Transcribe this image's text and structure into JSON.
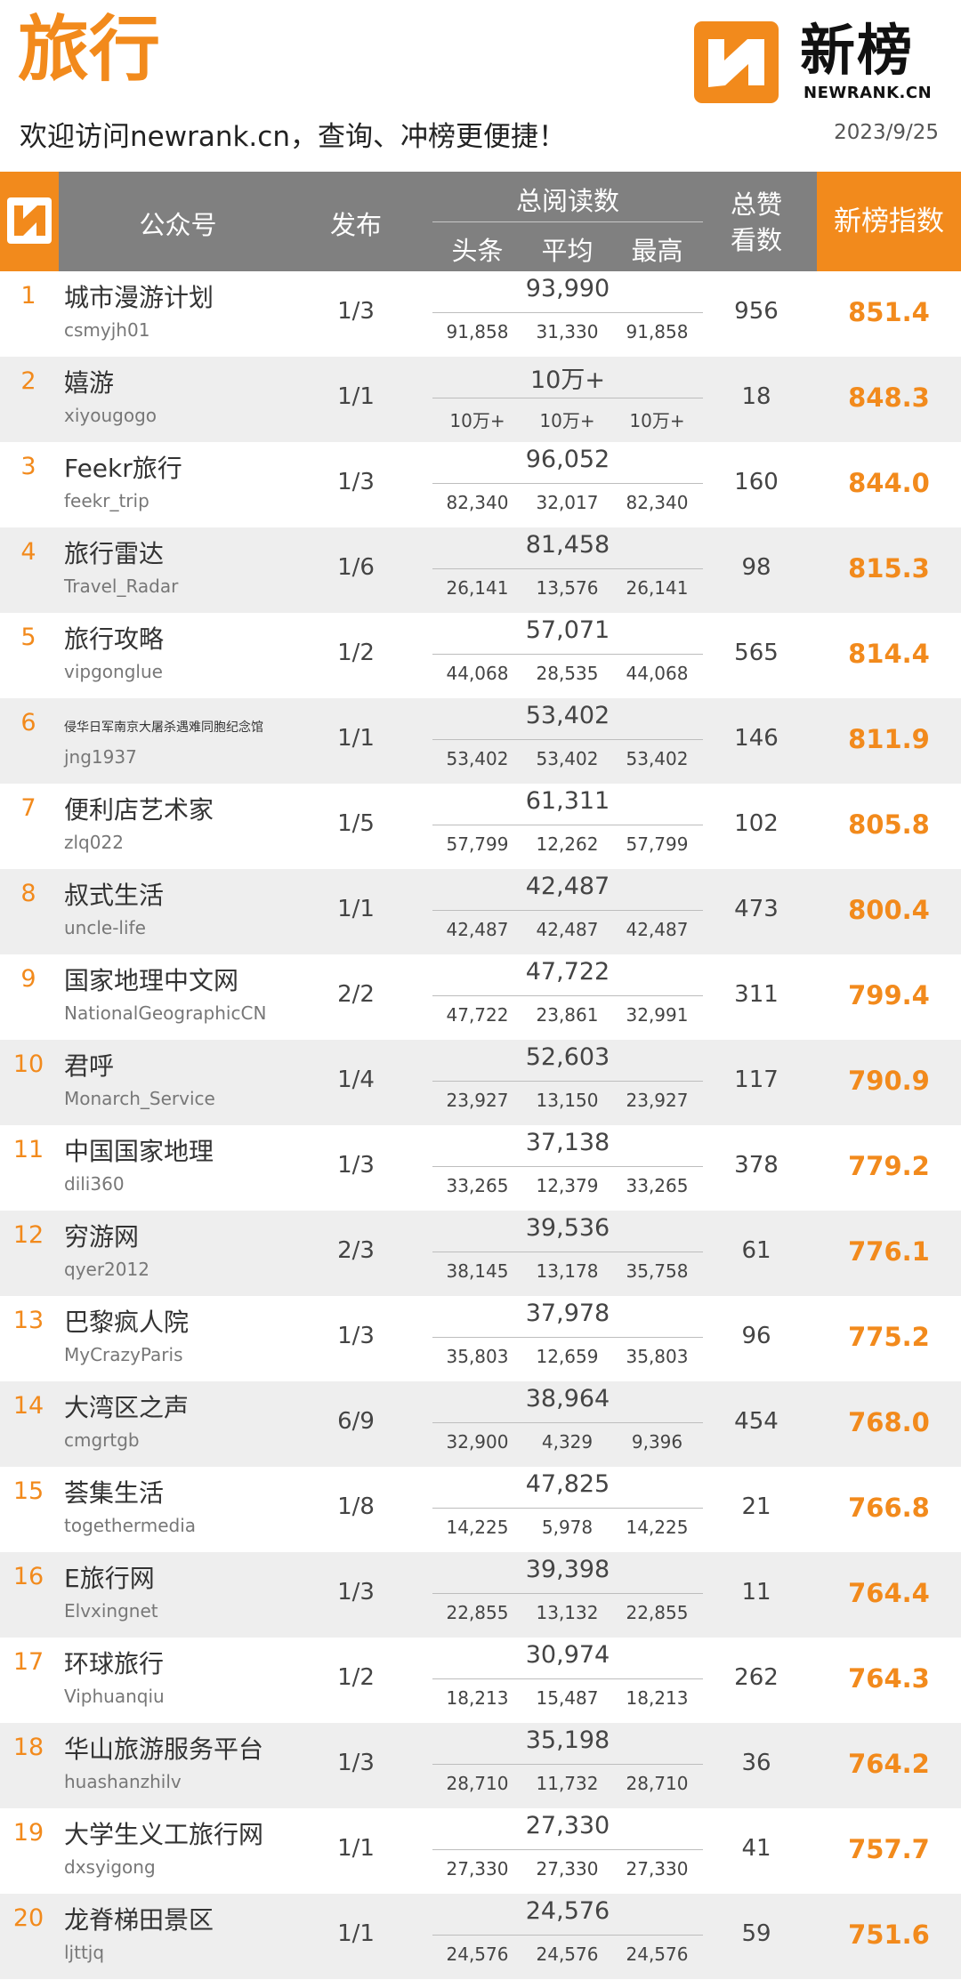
{
  "header": {
    "category": "旅行",
    "welcome": "欢迎访问newrank.cn，查询、冲榜更便捷！",
    "date": "2023/9/25",
    "logo_cn": "新榜",
    "logo_en": "NEWRANK.CN",
    "accent_color": "#f28a1c"
  },
  "columns": {
    "account": "公众号",
    "publish": "发布",
    "total_reads": "总阅读数",
    "headline": "头条",
    "average": "平均",
    "highest": "最高",
    "likes_line1": "总赞",
    "likes_line2": "看数",
    "index": "新榜指数"
  },
  "rows": [
    {
      "rank": "1",
      "name": "城市漫游计划",
      "id": "csmyjh01",
      "publish": "1/3",
      "total": "93,990",
      "headline": "91,858",
      "average": "31,330",
      "highest": "91,858",
      "likes": "956",
      "score": "851.4"
    },
    {
      "rank": "2",
      "name": "嬉游",
      "id": "xiyougogo",
      "publish": "1/1",
      "total": "10万+",
      "headline": "10万+",
      "average": "10万+",
      "highest": "10万+",
      "likes": "18",
      "score": "848.3"
    },
    {
      "rank": "3",
      "name": "Feekr旅行",
      "id": "feekr_trip",
      "publish": "1/3",
      "total": "96,052",
      "headline": "82,340",
      "average": "32,017",
      "highest": "82,340",
      "likes": "160",
      "score": "844.0"
    },
    {
      "rank": "4",
      "name": "旅行雷达",
      "id": "Travel_Radar",
      "publish": "1/6",
      "total": "81,458",
      "headline": "26,141",
      "average": "13,576",
      "highest": "26,141",
      "likes": "98",
      "score": "815.3"
    },
    {
      "rank": "5",
      "name": "旅行攻略",
      "id": "vipgonglue",
      "publish": "1/2",
      "total": "57,071",
      "headline": "44,068",
      "average": "28,535",
      "highest": "44,068",
      "likes": "565",
      "score": "814.4"
    },
    {
      "rank": "6",
      "name": "侵华日军南京大屠杀遇难同胞纪念馆",
      "id": "jng1937",
      "publish": "1/1",
      "total": "53,402",
      "headline": "53,402",
      "average": "53,402",
      "highest": "53,402",
      "likes": "146",
      "score": "811.9"
    },
    {
      "rank": "7",
      "name": "便利店艺术家",
      "id": "zlq022",
      "publish": "1/5",
      "total": "61,311",
      "headline": "57,799",
      "average": "12,262",
      "highest": "57,799",
      "likes": "102",
      "score": "805.8"
    },
    {
      "rank": "8",
      "name": "叔式生活",
      "id": "uncle-life",
      "publish": "1/1",
      "total": "42,487",
      "headline": "42,487",
      "average": "42,487",
      "highest": "42,487",
      "likes": "473",
      "score": "800.4"
    },
    {
      "rank": "9",
      "name": "国家地理中文网",
      "id": "NationalGeographicCN",
      "publish": "2/2",
      "total": "47,722",
      "headline": "47,722",
      "average": "23,861",
      "highest": "32,991",
      "likes": "311",
      "score": "799.4"
    },
    {
      "rank": "10",
      "name": "君呼",
      "id": "Monarch_Service",
      "publish": "1/4",
      "total": "52,603",
      "headline": "23,927",
      "average": "13,150",
      "highest": "23,927",
      "likes": "117",
      "score": "790.9"
    },
    {
      "rank": "11",
      "name": "中国国家地理",
      "id": "dili360",
      "publish": "1/3",
      "total": "37,138",
      "headline": "33,265",
      "average": "12,379",
      "highest": "33,265",
      "likes": "378",
      "score": "779.2"
    },
    {
      "rank": "12",
      "name": "穷游网",
      "id": "qyer2012",
      "publish": "2/3",
      "total": "39,536",
      "headline": "38,145",
      "average": "13,178",
      "highest": "35,758",
      "likes": "61",
      "score": "776.1"
    },
    {
      "rank": "13",
      "name": "巴黎疯人院",
      "id": "MyCrazyParis",
      "publish": "1/3",
      "total": "37,978",
      "headline": "35,803",
      "average": "12,659",
      "highest": "35,803",
      "likes": "96",
      "score": "775.2"
    },
    {
      "rank": "14",
      "name": "大湾区之声",
      "id": "cmgrtgb",
      "publish": "6/9",
      "total": "38,964",
      "headline": "32,900",
      "average": "4,329",
      "highest": "9,396",
      "likes": "454",
      "score": "768.0"
    },
    {
      "rank": "15",
      "name": "荟集生活",
      "id": "togethermedia",
      "publish": "1/8",
      "total": "47,825",
      "headline": "14,225",
      "average": "5,978",
      "highest": "14,225",
      "likes": "21",
      "score": "766.8"
    },
    {
      "rank": "16",
      "name": "E旅行网",
      "id": "Elvxingnet",
      "publish": "1/3",
      "total": "39,398",
      "headline": "22,855",
      "average": "13,132",
      "highest": "22,855",
      "likes": "11",
      "score": "764.4"
    },
    {
      "rank": "17",
      "name": "环球旅行",
      "id": "Viphuanqiu",
      "publish": "1/2",
      "total": "30,974",
      "headline": "18,213",
      "average": "15,487",
      "highest": "18,213",
      "likes": "262",
      "score": "764.3"
    },
    {
      "rank": "18",
      "name": "华山旅游服务平台",
      "id": "huashanzhilv",
      "publish": "1/3",
      "total": "35,198",
      "headline": "28,710",
      "average": "11,732",
      "highest": "28,710",
      "likes": "36",
      "score": "764.2"
    },
    {
      "rank": "19",
      "name": "大学生义工旅行网",
      "id": "dxsyigong",
      "publish": "1/1",
      "total": "27,330",
      "headline": "27,330",
      "average": "27,330",
      "highest": "27,330",
      "likes": "41",
      "score": "757.7"
    },
    {
      "rank": "20",
      "name": "龙脊梯田景区",
      "id": "ljttjq",
      "publish": "1/1",
      "total": "24,576",
      "headline": "24,576",
      "average": "24,576",
      "highest": "24,576",
      "likes": "59",
      "score": "751.6"
    }
  ]
}
